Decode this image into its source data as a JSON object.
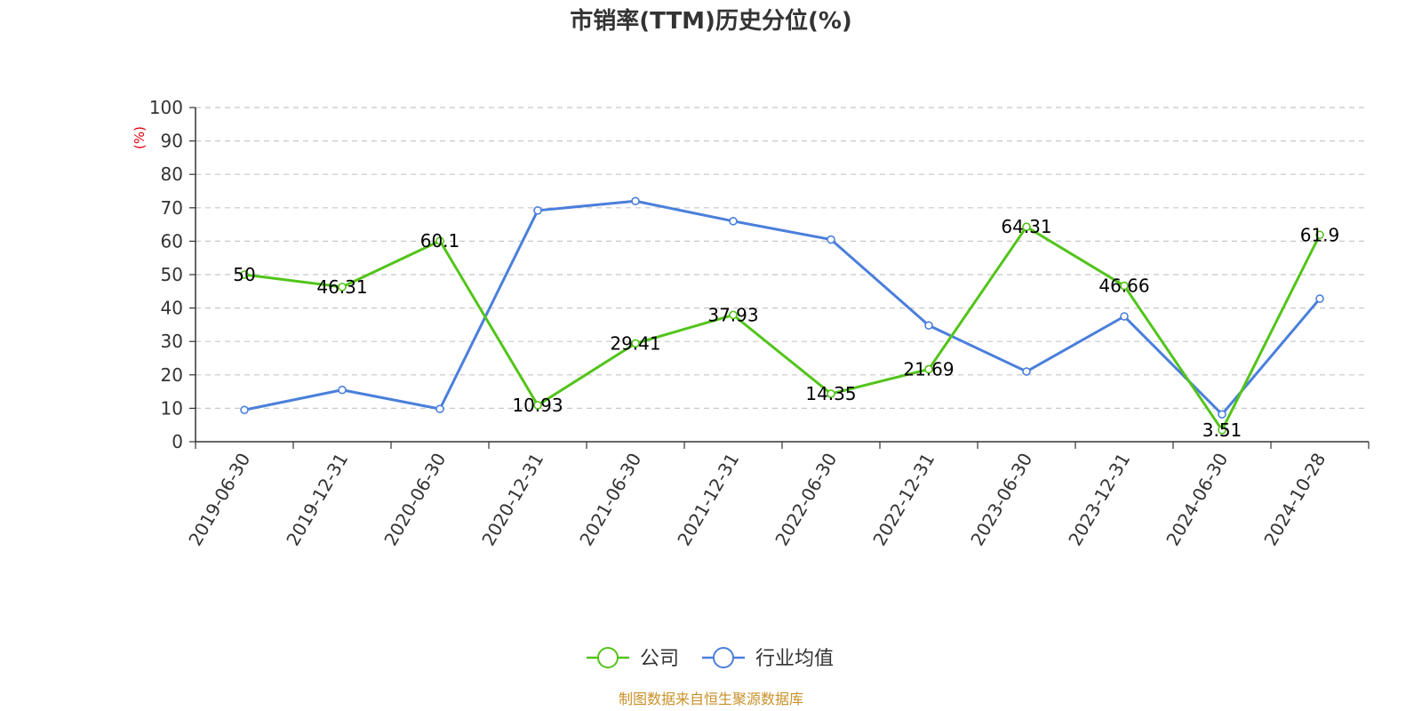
{
  "chart_data": {
    "type": "line",
    "title": "市销率(TTM)历史分位(%)",
    "ylabel": "(%)",
    "ylim": [
      0,
      100
    ],
    "yticks": [
      0,
      10,
      20,
      30,
      40,
      50,
      60,
      70,
      80,
      90,
      100
    ],
    "grid": true,
    "legend_position": "bottom-center",
    "categories": [
      "2019-06-30",
      "2019-12-31",
      "2020-06-30",
      "2020-12-31",
      "2021-06-30",
      "2021-12-31",
      "2022-06-30",
      "2022-12-31",
      "2023-06-30",
      "2023-12-31",
      "2024-06-30",
      "2024-10-28"
    ],
    "series": [
      {
        "name": "公司",
        "color": "#52c41a",
        "show_labels": true,
        "values": [
          50,
          46.31,
          60.1,
          10.93,
          29.41,
          37.93,
          14.35,
          21.69,
          64.31,
          46.66,
          3.51,
          61.9
        ]
      },
      {
        "name": "行业均值",
        "color": "#4a7fdb",
        "show_labels": false,
        "values": [
          9.5,
          15.5,
          9.8,
          69.2,
          72.0,
          66.0,
          60.5,
          34.8,
          21.0,
          37.5,
          8.2,
          42.8
        ]
      }
    ],
    "unit_color": "#e0000f"
  },
  "footer": {
    "source": "制图数据来自恒生聚源数据库",
    "source_color": "#c8912a"
  }
}
